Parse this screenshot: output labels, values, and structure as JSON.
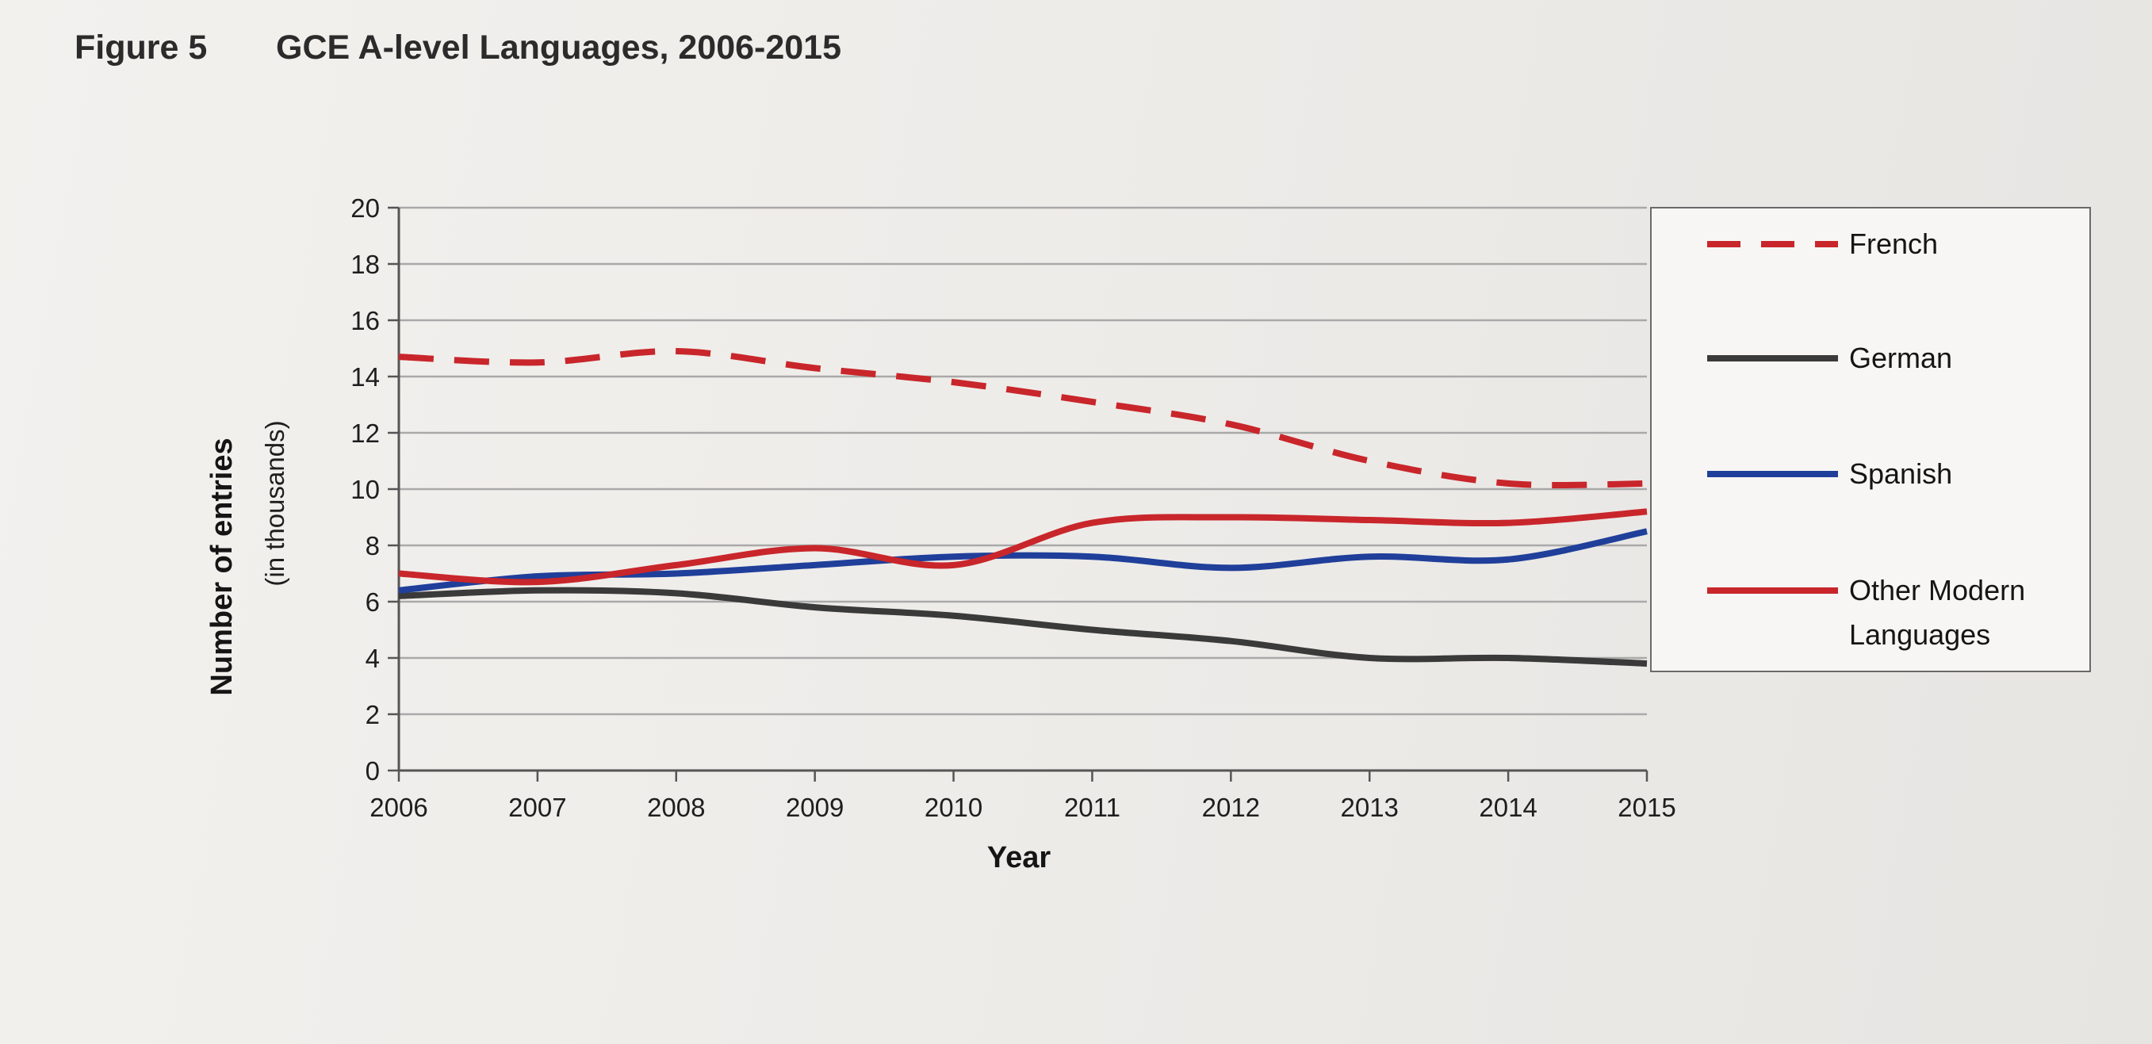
{
  "figure": {
    "label": "Figure 5",
    "title": "GCE A-level Languages, 2006-2015"
  },
  "chart_data": {
    "type": "line",
    "title": "GCE A-level Languages, 2006-2015",
    "xlabel": "Year",
    "ylabel": "Number of entries",
    "ylabel_sub": "(in thousands)",
    "x": [
      2006,
      2007,
      2008,
      2009,
      2010,
      2011,
      2012,
      2013,
      2014,
      2015
    ],
    "ylim": [
      0,
      20
    ],
    "yticks": [
      0,
      2,
      4,
      6,
      8,
      10,
      12,
      14,
      16,
      18,
      20
    ],
    "grid": true,
    "legend_position": "right",
    "series": [
      {
        "name": "French",
        "color": "#c8262b",
        "dash": "dashed",
        "values": [
          14.7,
          14.5,
          14.9,
          14.3,
          13.8,
          13.1,
          12.3,
          11.0,
          10.2,
          10.2
        ]
      },
      {
        "name": "German",
        "color": "#3a3a3a",
        "dash": "solid",
        "values": [
          6.2,
          6.4,
          6.3,
          5.8,
          5.5,
          5.0,
          4.6,
          4.0,
          4.0,
          3.8
        ]
      },
      {
        "name": "Spanish",
        "color": "#1f3f9a",
        "dash": "solid",
        "values": [
          6.4,
          6.9,
          7.0,
          7.3,
          7.6,
          7.6,
          7.2,
          7.6,
          7.5,
          8.5
        ]
      },
      {
        "name": "Other Modern Languages",
        "color": "#c8262b",
        "dash": "solid",
        "values": [
          7.0,
          6.7,
          7.3,
          7.9,
          7.3,
          8.8,
          9.0,
          8.9,
          8.8,
          9.2
        ]
      }
    ]
  }
}
